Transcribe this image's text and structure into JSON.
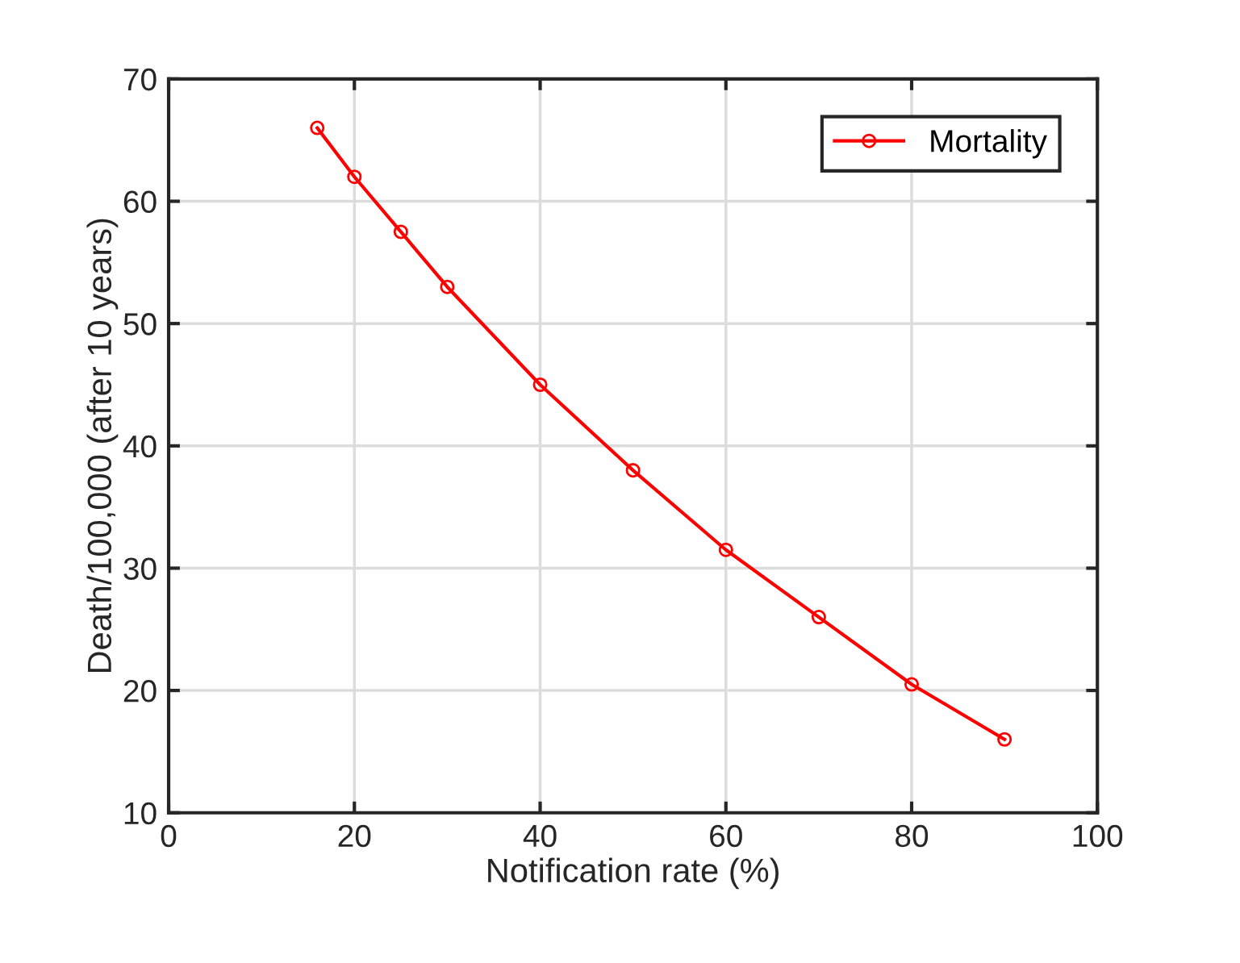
{
  "chart_data": {
    "type": "line",
    "xlabel": "Notification rate (%)",
    "ylabel": "Death/100,000 (after 10 years)",
    "x": [
      16,
      20,
      25,
      30,
      40,
      50,
      60,
      70,
      80,
      90
    ],
    "series": [
      {
        "name": "Mortality",
        "color": "#ff0000",
        "values": [
          66,
          62,
          57.5,
          53,
          45,
          38,
          31.5,
          26,
          20.5,
          16
        ]
      }
    ],
    "xlim": [
      0,
      100
    ],
    "xticks": [
      0,
      20,
      40,
      60,
      80,
      100
    ],
    "ylim": [
      10,
      70
    ],
    "yticks": [
      10,
      20,
      30,
      40,
      50,
      60,
      70
    ],
    "grid": true,
    "legend": "top right",
    "marker": "circle",
    "line_style": "solid"
  }
}
